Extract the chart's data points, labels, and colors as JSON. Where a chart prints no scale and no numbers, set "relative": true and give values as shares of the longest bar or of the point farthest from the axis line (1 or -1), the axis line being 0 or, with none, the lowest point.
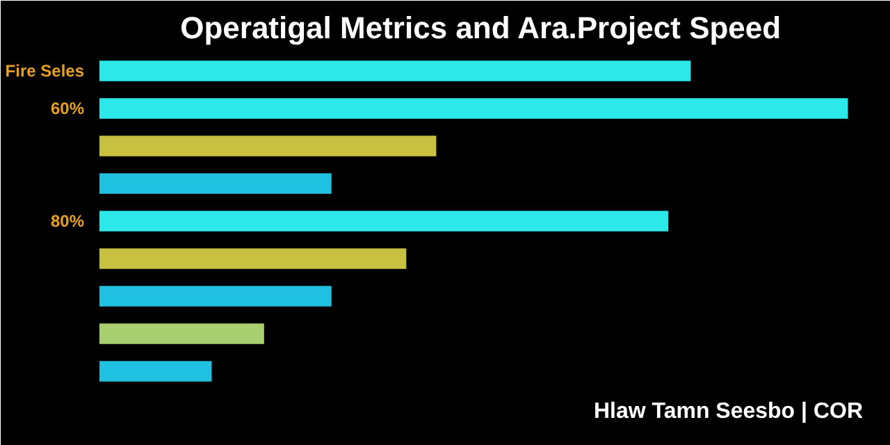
{
  "chart_data": {
    "type": "bar",
    "orientation": "horizontal",
    "relative": true,
    "title": "Operatigal Metrics and Ara.Project Speed",
    "categories": [
      "Fire Seles",
      "60%",
      null,
      null,
      "80%",
      null,
      null,
      null,
      null
    ],
    "values": [
      0.79,
      1.0,
      0.45,
      0.31,
      0.76,
      0.41,
      0.31,
      0.22,
      0.15
    ],
    "colors": [
      "#2de8e8",
      "#2de8e8",
      "#c8c040",
      "#20c0e0",
      "#2de8e8",
      "#c8c040",
      "#20c0e0",
      "#a8d070",
      "#20c0e0"
    ],
    "annotations": [
      "Hlaw Tamn Seesbo | COR"
    ]
  }
}
